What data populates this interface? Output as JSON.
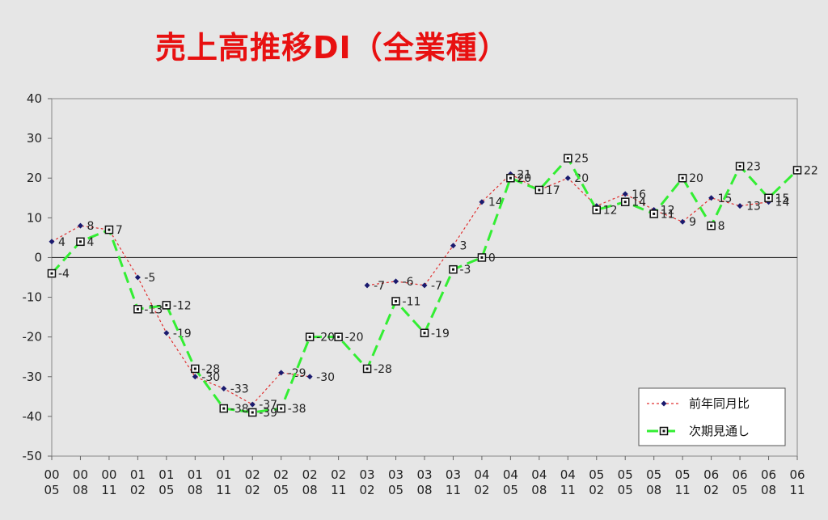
{
  "chart_data": {
    "type": "line",
    "title": "売上高推移DI（全業種）",
    "categories": [
      [
        "00",
        "05"
      ],
      [
        "00",
        "08"
      ],
      [
        "00",
        "11"
      ],
      [
        "01",
        "02"
      ],
      [
        "01",
        "05"
      ],
      [
        "01",
        "08"
      ],
      [
        "01",
        "11"
      ],
      [
        "02",
        "02"
      ],
      [
        "02",
        "05"
      ],
      [
        "02",
        "08"
      ],
      [
        "02",
        "11"
      ],
      [
        "03",
        "02"
      ],
      [
        "03",
        "05"
      ],
      [
        "03",
        "08"
      ],
      [
        "03",
        "11"
      ],
      [
        "04",
        "02"
      ],
      [
        "04",
        "05"
      ],
      [
        "04",
        "08"
      ],
      [
        "04",
        "11"
      ],
      [
        "05",
        "02"
      ],
      [
        "05",
        "05"
      ],
      [
        "05",
        "08"
      ],
      [
        "05",
        "11"
      ],
      [
        "06",
        "02"
      ],
      [
        "06",
        "05"
      ],
      [
        "06",
        "08"
      ],
      [
        "06",
        "11"
      ]
    ],
    "ylim": [
      -50,
      40
    ],
    "yticks": [
      "40",
      "30",
      "20",
      "10",
      "0",
      "-10",
      "-20",
      "-30",
      "-40",
      "-50"
    ],
    "grid": false,
    "legend_position": "bottom-right",
    "series": [
      {
        "name": "前年同月比",
        "color": "#e03030",
        "marker_color": "#1a1a6e",
        "style": "dotted",
        "marker": "diamond",
        "values": [
          4,
          8,
          7,
          -5,
          -19,
          -30,
          -33,
          -37,
          -29,
          -30,
          null,
          -7,
          -6,
          -7,
          3,
          14,
          21,
          17,
          20,
          13,
          16,
          12,
          9,
          15,
          13,
          14,
          null
        ],
        "labels": [
          "4",
          "8",
          "",
          "-5",
          "-19",
          "-30",
          "-33",
          "-37",
          "-29",
          "-30",
          "",
          "-7",
          "-6",
          "-7",
          "3",
          "14",
          "21",
          "",
          "20",
          "",
          "16",
          "12",
          "9",
          "15",
          "13",
          "14",
          ""
        ]
      },
      {
        "name": "次期見通し",
        "color": "#33ee33",
        "style": "dashed",
        "marker": "square",
        "values": [
          -4,
          4,
          7,
          -13,
          -12,
          -28,
          -38,
          -39,
          -38,
          -20,
          -20,
          -28,
          -11,
          -19,
          -3,
          0,
          20,
          17,
          25,
          12,
          14,
          11,
          20,
          8,
          23,
          15,
          22
        ],
        "labels": [
          "-4",
          "4",
          "7",
          "-13",
          "-12",
          "-28",
          "-38",
          "-39",
          "-38",
          "-20",
          "-20",
          "-28",
          "-11",
          "-19",
          "-3",
          "0",
          "20",
          "17",
          "25",
          "12",
          "14",
          "11",
          "20",
          "8",
          "23",
          "15",
          "22"
        ]
      }
    ]
  }
}
